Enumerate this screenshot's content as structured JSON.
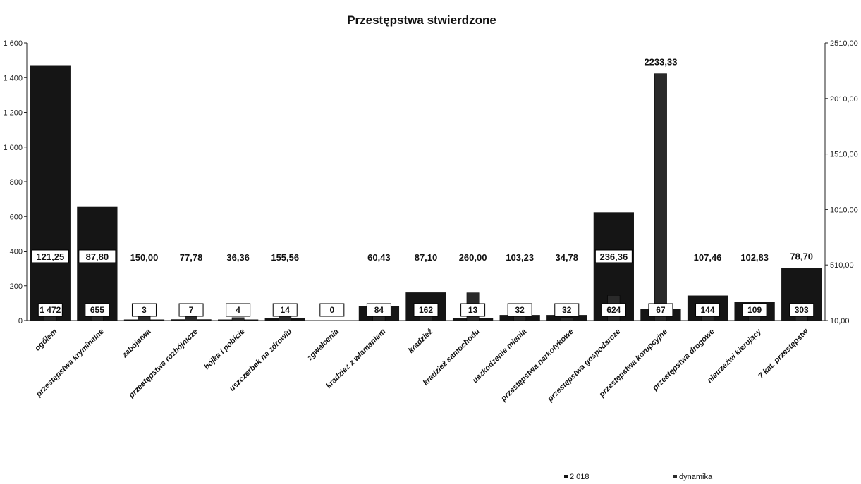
{
  "chart_data": {
    "type": "bar",
    "title": "Przestępstwa stwierdzone",
    "categories": [
      "ogółem",
      "przestępstwa kryminalne",
      "zabójstwa",
      "przestępstwa rozbójnicze",
      "bójka i pobicie",
      "uszczerbek na zdrowiu",
      "zgwałcenia",
      "kradzież z włamaniem",
      "kradzież",
      "kradzież samochodu",
      "uszkodzenie mienia",
      "przestępstwa narkotykowe",
      "przestępstwa gospodarcze",
      "przestępstwa korupcyjne",
      "przestępstwa drogowe",
      "nietrzeźwi kierujący",
      "7 kat. przestępstw"
    ],
    "series": [
      {
        "name": "2018",
        "axis": "left",
        "values": [
          1472,
          655,
          3,
          7,
          4,
          14,
          0,
          84,
          162,
          13,
          32,
          32,
          624,
          67,
          144,
          109,
          303
        ],
        "labels": [
          "1 472",
          "655",
          "3",
          "7",
          "4",
          "14",
          "0",
          "84",
          "162",
          "13",
          "32",
          "32",
          "624",
          "67",
          "144",
          "109",
          "303"
        ],
        "color": "#151515"
      },
      {
        "name": "dynamika",
        "axis": "right",
        "values": [
          121.25,
          87.8,
          150.0,
          77.78,
          36.36,
          155.56,
          null,
          60.43,
          87.1,
          260.0,
          103.23,
          34.78,
          236.36,
          2233.33,
          107.46,
          102.83,
          78.7
        ],
        "labels": [
          "121,25",
          "87,80",
          "150,00",
          "77,78",
          "36,36",
          "155,56",
          "",
          "60,43",
          "87,10",
          "260,00",
          "103,23",
          "34,78",
          "236,36",
          "2233,33",
          "107,46",
          "102,83",
          "78,70"
        ],
        "color": "#2a2a2a"
      }
    ],
    "y_left": {
      "lim": [
        0,
        1600
      ],
      "ticks": [
        0,
        200,
        400,
        600,
        800,
        1000,
        1200,
        1400,
        1600
      ],
      "tick_labels": [
        "0",
        "200",
        "400",
        "600",
        "800",
        "1 000",
        "1 200",
        "1 400",
        "1 600"
      ]
    },
    "y_right": {
      "lim": [
        10,
        2510
      ],
      "ticks": [
        10,
        510,
        1010,
        1510,
        2010,
        2510
      ],
      "tick_labels": [
        "10,00",
        "510,00",
        "1010,00",
        "1510,00",
        "2010,00",
        "2510,00"
      ]
    },
    "legend": {
      "position": "bottom-right",
      "entries": [
        "2 018",
        "dynamika"
      ]
    },
    "grid": false
  }
}
